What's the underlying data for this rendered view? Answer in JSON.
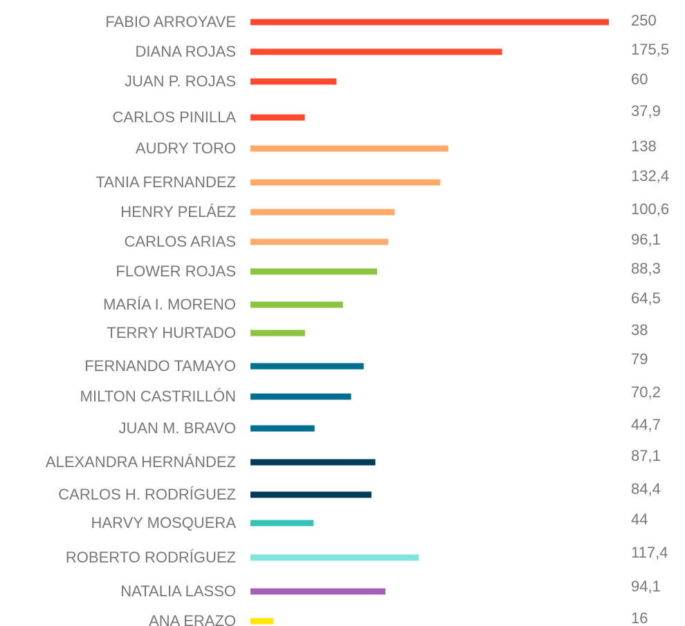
{
  "chart_data": {
    "type": "barh",
    "categories": [
      "FABIO ARROYAVE",
      "DIANA ROJAS",
      "JUAN P. ROJAS",
      "CARLOS PINILLA",
      "AUDRY TORO",
      "TANIA FERNANDEZ",
      "HENRY PELÁEZ",
      "CARLOS ARIAS",
      "FLOWER ROJAS",
      "MARÍA I. MORENO",
      "TERRY HURTADO",
      "FERNANDO TAMAYO",
      "MILTON CASTRILLÓN",
      "JUAN M. BRAVO",
      "ALEXANDRA HERNÁNDEZ",
      "CARLOS H. RODRÍGUEZ",
      "HARVY MOSQUERA",
      "ROBERTO RODRÍGUEZ",
      "NATALIA LASSO",
      "ANA ERAZO"
    ],
    "values": [
      250,
      175.5,
      60,
      37.9,
      138,
      132.4,
      100.6,
      96.1,
      88.3,
      64.5,
      38,
      79,
      70.2,
      44.7,
      87.1,
      84.4,
      44,
      117.4,
      94.1,
      16
    ],
    "value_labels": [
      "250",
      "175,5",
      "60",
      "37,9",
      "138",
      "132,4",
      "100,6",
      "96,1",
      "88,3",
      "64,5",
      "38",
      "79",
      "70,2",
      "44,7",
      "87,1",
      "84,4",
      "44",
      "117,4",
      "94,1",
      "16"
    ],
    "colors": [
      "#ff4a2f",
      "#ff4a2f",
      "#ff4a2f",
      "#ff4a2f",
      "#fdaa6a",
      "#fdaa6a",
      "#fdaa6a",
      "#fdaa6a",
      "#8cc43f",
      "#8cc43f",
      "#8cc43f",
      "#006f91",
      "#006f91",
      "#006f91",
      "#003c57",
      "#003c57",
      "#35c2b8",
      "#7fe3e0",
      "#a35fba",
      "#ffe600"
    ]
  }
}
